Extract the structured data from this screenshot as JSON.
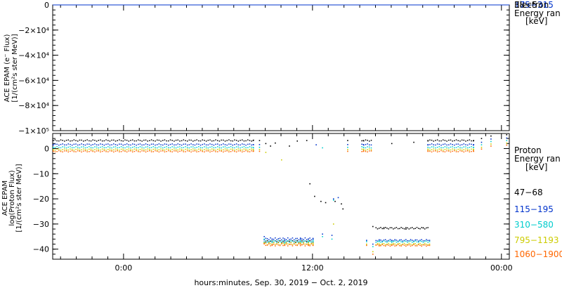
{
  "chart_data": [
    {
      "type": "scatter",
      "panel": "electron",
      "ylabel_lines": [
        "ACE EPAM (e⁻ Flux)",
        "[1/(cm²s ster MeV)]"
      ],
      "ylim": [
        -100000,
        0
      ],
      "yticks": [
        "0",
        "−2×10⁴",
        "−4×10⁴",
        "−6×10⁴",
        "−8×10⁴",
        "−1×10⁵"
      ],
      "ytick_values": [
        0,
        -20000,
        -40000,
        -60000,
        -80000,
        -100000
      ],
      "legend_title": [
        "Electron",
        "Energy ran"
      ],
      "legend_unit": "[keV]",
      "series": [
        {
          "name": "38−53",
          "color": "#000000",
          "flat_value": 0
        },
        {
          "name": "175−315",
          "color": "#0033cc",
          "flat_value": 0
        }
      ]
    },
    {
      "type": "scatter",
      "panel": "proton",
      "ylabel_lines": [
        "ACE EPAM",
        "log(Proton Flux)",
        "[1/(cm²s ster MeV)]"
      ],
      "ylim": [
        -44,
        6
      ],
      "yticks": [
        "0",
        "−10",
        "−20",
        "−30",
        "−40"
      ],
      "ytick_values": [
        0,
        -10,
        -20,
        -30,
        -40
      ],
      "legend_title": [
        "Proton",
        "Energy ran"
      ],
      "legend_unit": "[keV]",
      "series": [
        {
          "name": "47−68",
          "color": "#000000",
          "offset": 3.2,
          "values": [
            [
              -4.5,
              3.2
            ],
            [
              8.2,
              3.2
            ],
            [
              8.6,
              3.2
            ],
            [
              9.0,
              2.0
            ],
            [
              9.3,
              1.0
            ],
            [
              9.6,
              2.2
            ],
            [
              10.5,
              1.0
            ],
            [
              11.0,
              3.0
            ],
            [
              11.6,
              3.2
            ],
            [
              11.8,
              -14
            ],
            [
              12.1,
              -19
            ],
            [
              12.5,
              -21
            ],
            [
              12.8,
              -21.5
            ],
            [
              13.4,
              -21
            ],
            [
              13.8,
              -22
            ],
            [
              13.9,
              -24
            ],
            [
              14.2,
              3.2
            ],
            [
              15.2,
              3.2
            ],
            [
              15.8,
              -31
            ],
            [
              16.5,
              -31.5
            ],
            [
              17.0,
              2.0
            ],
            [
              17.9,
              -32
            ],
            [
              18.4,
              2.5
            ],
            [
              19.0,
              -31.5
            ],
            [
              19.3,
              3.2
            ],
            [
              22.2,
              3.2
            ],
            [
              22.7,
              4.0
            ],
            [
              23.3,
              5.0
            ],
            [
              24.3,
              5.5
            ]
          ]
        },
        {
          "name": "115−195",
          "color": "#0033cc",
          "offset": 1.6,
          "values": [
            [
              -4.5,
              1.6
            ],
            [
              8.2,
              1.6
            ],
            [
              8.6,
              1.6
            ],
            [
              8.9,
              -35
            ],
            [
              9.4,
              -36
            ],
            [
              10.2,
              -36.5
            ],
            [
              11.2,
              -36
            ],
            [
              11.7,
              -36
            ],
            [
              12.0,
              -36
            ],
            [
              12.2,
              1.5
            ],
            [
              12.6,
              -34
            ],
            [
              13.2,
              -34.5
            ],
            [
              13.3,
              -20
            ],
            [
              13.6,
              -19.5
            ],
            [
              14.2,
              1.6
            ],
            [
              15.2,
              1.6
            ],
            [
              15.4,
              -36.5
            ],
            [
              15.8,
              -38
            ],
            [
              16.2,
              -36.5
            ],
            [
              17.0,
              -36.5
            ],
            [
              19.4,
              -36.5
            ],
            [
              19.3,
              1.6
            ],
            [
              22.2,
              1.6
            ],
            [
              22.7,
              2.5
            ],
            [
              23.3,
              3.8
            ],
            [
              24.3,
              4.2
            ]
          ]
        },
        {
          "name": "310−580",
          "color": "#00cccc",
          "offset": 0.5,
          "values": [
            [
              -4.5,
              0.5
            ],
            [
              8.2,
              0.5
            ],
            [
              8.6,
              0.5
            ],
            [
              8.9,
              -36
            ],
            [
              9.4,
              -37
            ],
            [
              10.2,
              -37.5
            ],
            [
              11.2,
              -37
            ],
            [
              11.7,
              -37
            ],
            [
              12.0,
              -37
            ],
            [
              12.6,
              0.3
            ],
            [
              12.6,
              -35
            ],
            [
              13.2,
              -36
            ],
            [
              13.3,
              -20.5
            ],
            [
              14.2,
              0.5
            ],
            [
              15.2,
              0.5
            ],
            [
              15.4,
              -37
            ],
            [
              15.8,
              -39
            ],
            [
              16.2,
              -37
            ],
            [
              17.0,
              -37
            ],
            [
              19.4,
              -37
            ],
            [
              19.3,
              0.5
            ],
            [
              22.2,
              0.5
            ],
            [
              22.7,
              1.5
            ],
            [
              23.3,
              2.8
            ],
            [
              24.3,
              3.2
            ]
          ]
        },
        {
          "name": "795−1193",
          "color": "#cccc00",
          "offset": -0.4,
          "values": [
            [
              -4.5,
              -0.4
            ],
            [
              8.2,
              -0.4
            ],
            [
              8.6,
              -0.4
            ],
            [
              8.9,
              -37.5
            ],
            [
              9.4,
              -38
            ],
            [
              10.2,
              -38
            ],
            [
              11.2,
              -37.5
            ],
            [
              11.7,
              -38
            ],
            [
              12.0,
              -38
            ],
            [
              9.0,
              -1.5
            ],
            [
              10.0,
              -4.5
            ],
            [
              13.3,
              -30
            ],
            [
              14.2,
              -0.4
            ],
            [
              15.2,
              -0.4
            ],
            [
              15.4,
              -38
            ],
            [
              15.8,
              -41
            ],
            [
              16.2,
              -38
            ],
            [
              17.0,
              -38
            ],
            [
              19.4,
              -38
            ],
            [
              19.3,
              -0.4
            ],
            [
              22.2,
              -0.4
            ],
            [
              22.7,
              0.5
            ],
            [
              23.3,
              1.8
            ],
            [
              24.3,
              2.2
            ]
          ]
        },
        {
          "name": "1060−1900",
          "color": "#ff6600",
          "offset": -1.1,
          "values": [
            [
              -4.5,
              -1.1
            ],
            [
              8.2,
              -1.1
            ],
            [
              8.6,
              -1.1
            ],
            [
              8.9,
              -37.8
            ],
            [
              9.4,
              -38.5
            ],
            [
              10.2,
              -38.5
            ],
            [
              11.2,
              -38.0
            ],
            [
              11.7,
              -38.5
            ],
            [
              12.0,
              -38.5
            ],
            [
              14.2,
              -1.1
            ],
            [
              15.2,
              -1.1
            ],
            [
              15.4,
              -38.5
            ],
            [
              15.8,
              -42
            ],
            [
              16.2,
              -38.5
            ],
            [
              17.0,
              -38.5
            ],
            [
              19.4,
              -38.5
            ],
            [
              19.3,
              -1.1
            ],
            [
              22.2,
              -1.1
            ],
            [
              22.7,
              -0.2
            ],
            [
              23.3,
              1.0
            ],
            [
              24.3,
              1.4
            ]
          ]
        }
      ]
    }
  ],
  "x_axis": {
    "xlabel": "hours:minutes, Sep. 30, 2019 − Oct. 2, 2019",
    "xlim": [
      -4.5,
      24.5
    ],
    "ticks": [
      {
        "value": 0,
        "label": "0:00"
      },
      {
        "value": 12,
        "label": "12:00"
      },
      {
        "value": 24,
        "label": "00:00"
      }
    ]
  }
}
